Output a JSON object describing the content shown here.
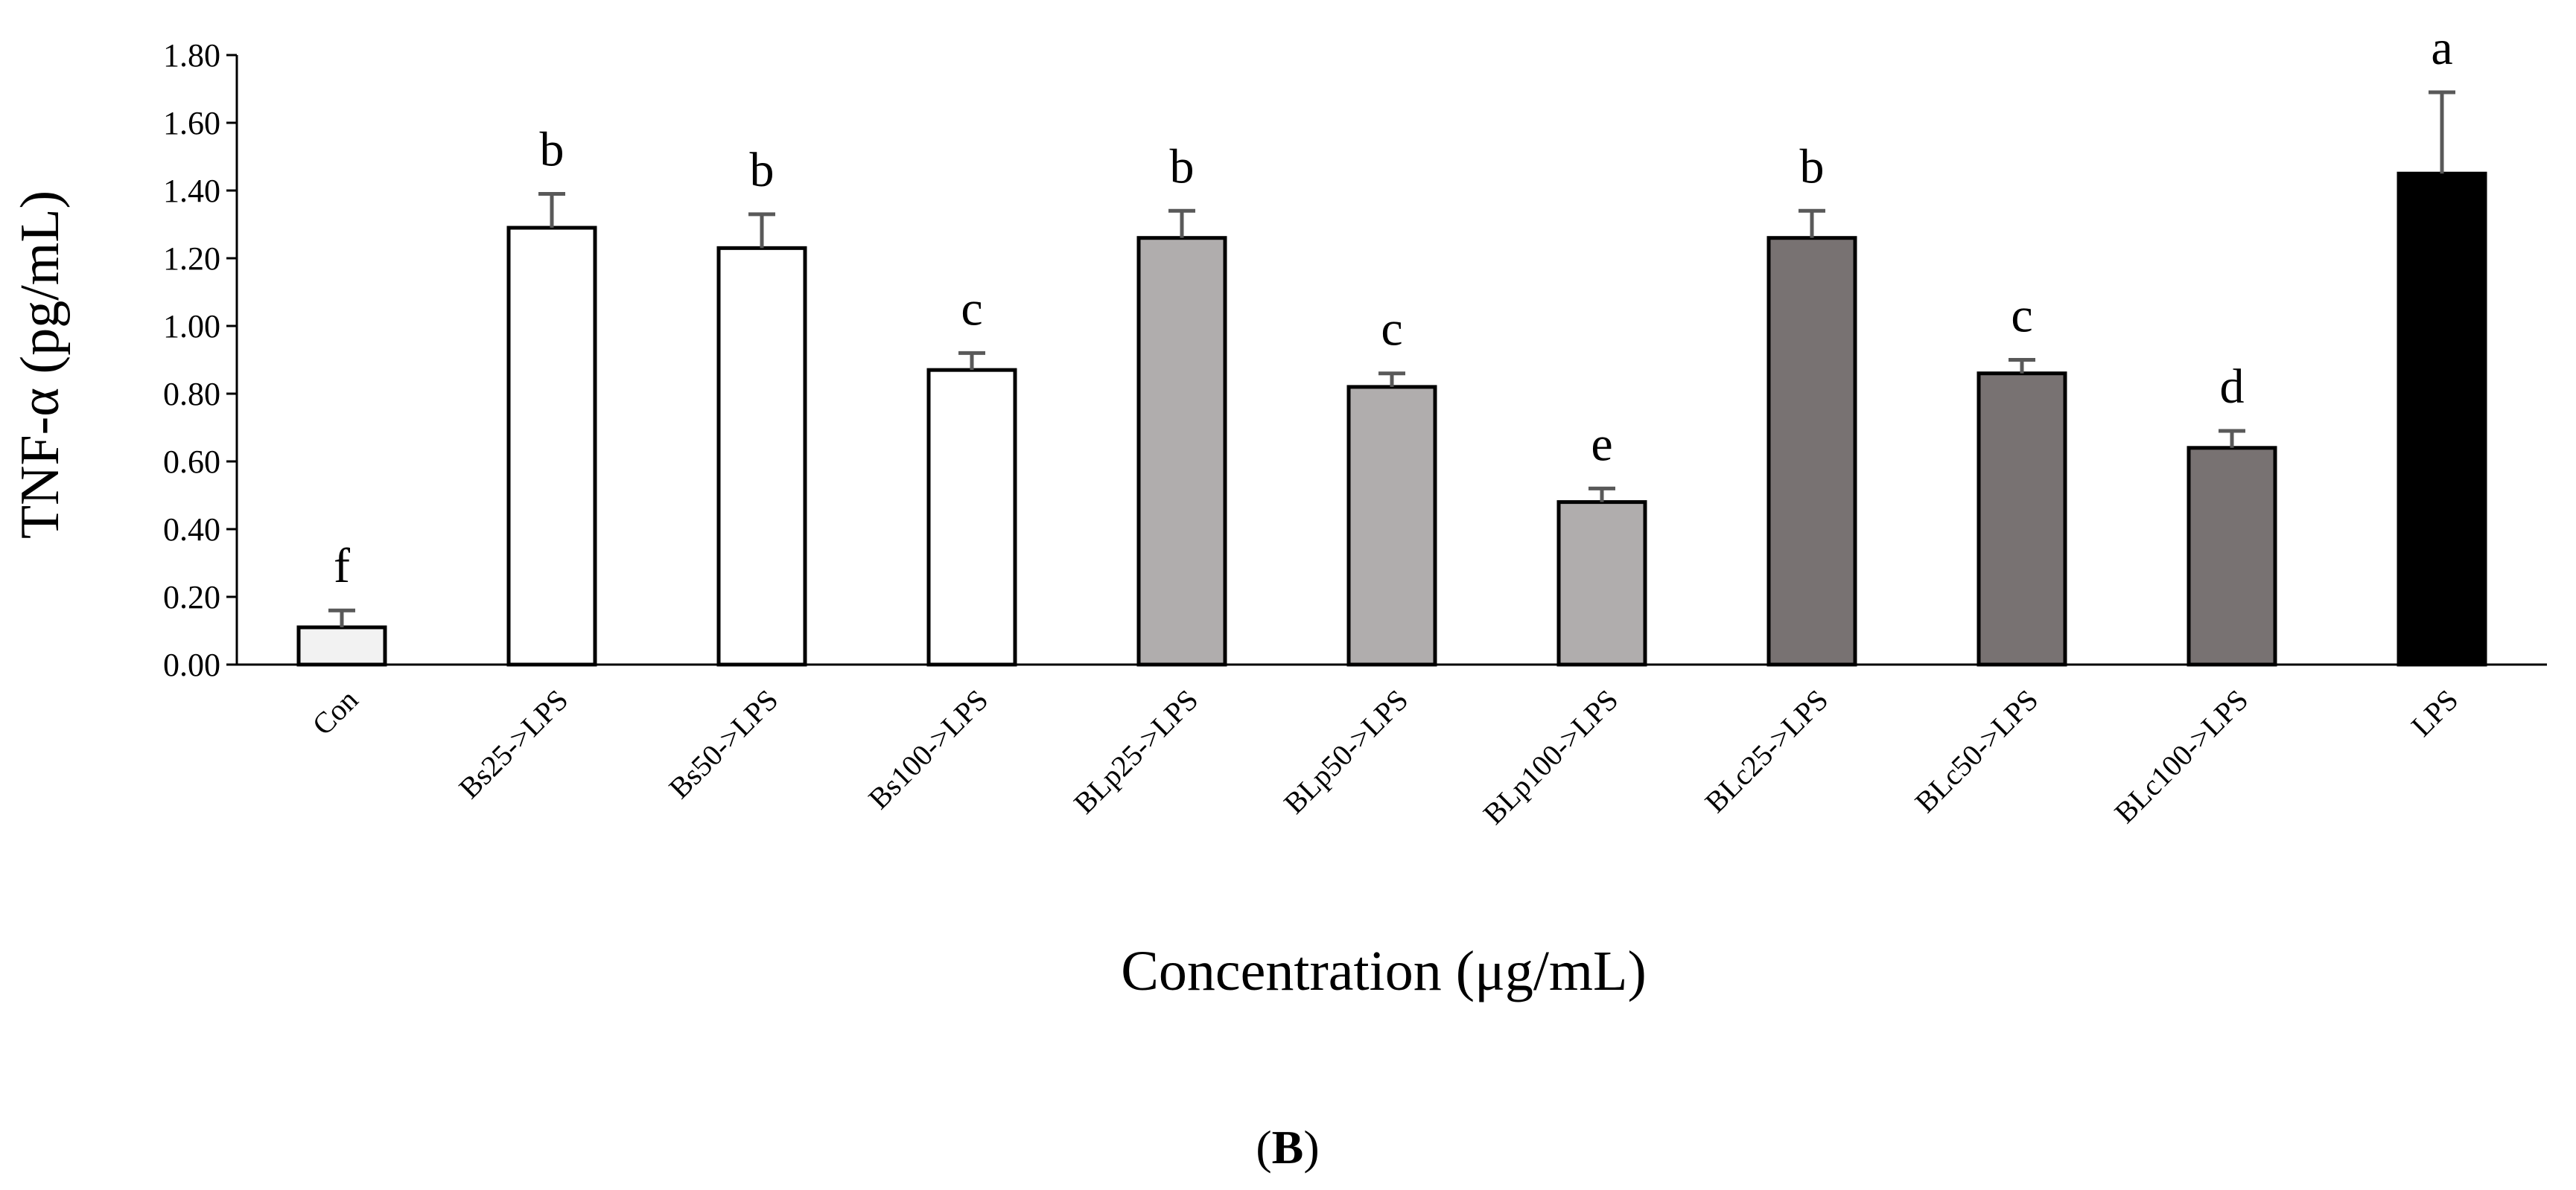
{
  "chart_data": {
    "type": "bar",
    "categories": [
      "Con",
      "Bs25->LPS",
      "Bs50->LPS",
      "Bs100->LPS",
      "BLp25->LPS",
      "BLp50->LPS",
      "BLp100->LPS",
      "BLc25->LPS",
      "BLc50->LPS",
      "BLc100->LPS",
      "LPS"
    ],
    "values": [
      0.11,
      1.29,
      1.23,
      0.87,
      1.26,
      0.82,
      0.48,
      1.26,
      0.86,
      0.64,
      1.45
    ],
    "errors": [
      0.05,
      0.1,
      0.1,
      0.05,
      0.08,
      0.04,
      0.04,
      0.08,
      0.04,
      0.05,
      0.24
    ],
    "significance_letters": [
      "f",
      "b",
      "b",
      "c",
      "b",
      "c",
      "e",
      "b",
      "c",
      "d",
      "a"
    ],
    "bar_colors": [
      "#f2f2f2",
      "#ffffff",
      "#ffffff",
      "#ffffff",
      "#b0adad",
      "#b0adad",
      "#b0adad",
      "#787272",
      "#787272",
      "#787272",
      "#000000"
    ],
    "ylim": [
      0,
      1.8
    ],
    "y_ticks": [
      "0.00",
      "0.20",
      "0.40",
      "0.60",
      "0.80",
      "1.00",
      "1.20",
      "1.40",
      "1.60",
      "1.80"
    ],
    "y_tick_values": [
      0,
      0.2,
      0.4,
      0.6,
      0.8,
      1.0,
      1.2,
      1.4,
      1.6,
      1.8
    ],
    "ylabel": "TNF-α (pg/mL)",
    "xlabel": "Concentration (μg/mL)",
    "grid": false,
    "panel_label": {
      "open": "(",
      "letter": "B",
      "close": ")"
    }
  }
}
